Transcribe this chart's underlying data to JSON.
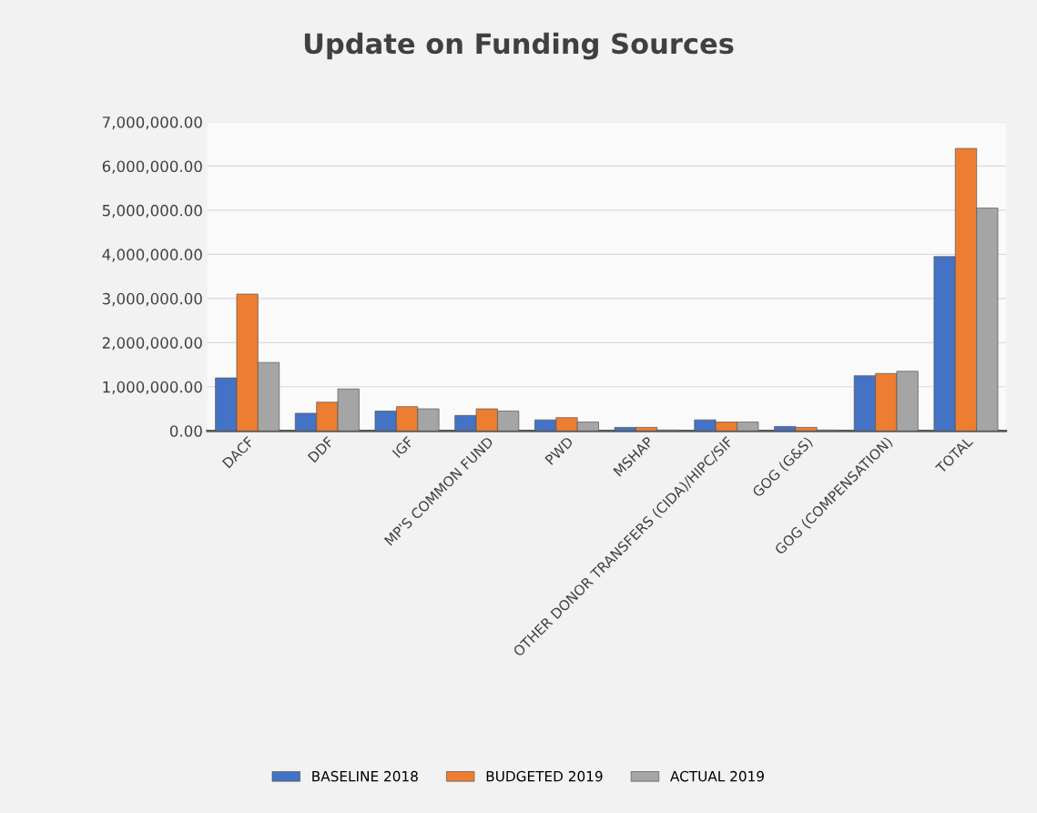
{
  "chart_data": {
    "type": "bar",
    "title": "Update on Funding Sources",
    "categories": [
      "DACF",
      "DDF",
      "IGF",
      "MP'S COMMON FUND",
      "PWD",
      "MSHAP",
      "OTHER DONOR TRANSFERS (CIDA)/HIPC/SIF",
      "GOG (G&S)",
      "GOG (COMPENSATION)",
      "TOTAL"
    ],
    "series": [
      {
        "name": "BASELINE 2018",
        "color": "#4472c4",
        "values": [
          1200000,
          400000,
          450000,
          350000,
          250000,
          80000,
          250000,
          100000,
          1250000,
          3950000
        ]
      },
      {
        "name": "BUDGETED 2019",
        "color": "#ed7d31",
        "values": [
          3100000,
          650000,
          550000,
          500000,
          300000,
          80000,
          200000,
          80000,
          1300000,
          6400000
        ]
      },
      {
        "name": "ACTUAL 2019",
        "color": "#a5a5a5",
        "values": [
          1550000,
          950000,
          500000,
          450000,
          200000,
          20000,
          200000,
          20000,
          1350000,
          5050000
        ]
      }
    ],
    "ylim": [
      0,
      7000000
    ],
    "yticks": [
      {
        "value": 0,
        "label": "0.00"
      },
      {
        "value": 1000000,
        "label": "1,000,000.00"
      },
      {
        "value": 2000000,
        "label": "2,000,000.00"
      },
      {
        "value": 3000000,
        "label": "3,000,000.00"
      },
      {
        "value": 4000000,
        "label": "4,000,000.00"
      },
      {
        "value": 5000000,
        "label": "5,000,000.00"
      },
      {
        "value": 6000000,
        "label": "6,000,000.00"
      },
      {
        "value": 7000000,
        "label": "7,000,000.00"
      }
    ],
    "grid": "y",
    "legend": "bottom"
  }
}
